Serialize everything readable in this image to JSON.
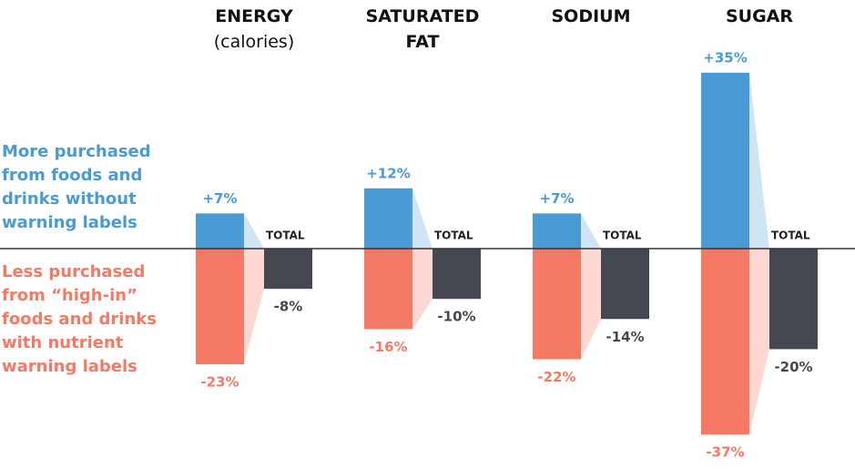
{
  "chart_data": {
    "type": "bar",
    "categories": [
      "ENERGY",
      "SATURATED FAT",
      "SODIUM",
      "SUGAR"
    ],
    "category_notes": [
      "(calories)",
      null,
      null,
      null
    ],
    "series": [
      {
        "name": "More purchased from foods and drinks without warning labels",
        "color": "#4a9bd4",
        "values": [
          7,
          12,
          7,
          35
        ],
        "value_labels": [
          "+7%",
          "+12%",
          "+7%",
          "+35%"
        ]
      },
      {
        "name": "Less purchased from “high-in” foods and drinks with nutrient warning labels",
        "color": "#f47a66",
        "values": [
          -23,
          -16,
          -22,
          -37
        ],
        "value_labels": [
          "-23%",
          "-16%",
          "-22%",
          "-37%"
        ]
      },
      {
        "name": "TOTAL",
        "color": "#454851",
        "values": [
          -8,
          -10,
          -14,
          -20
        ],
        "value_labels": [
          "-8%",
          "-10%",
          "-14%",
          "-20%"
        ]
      }
    ]
  }
}
